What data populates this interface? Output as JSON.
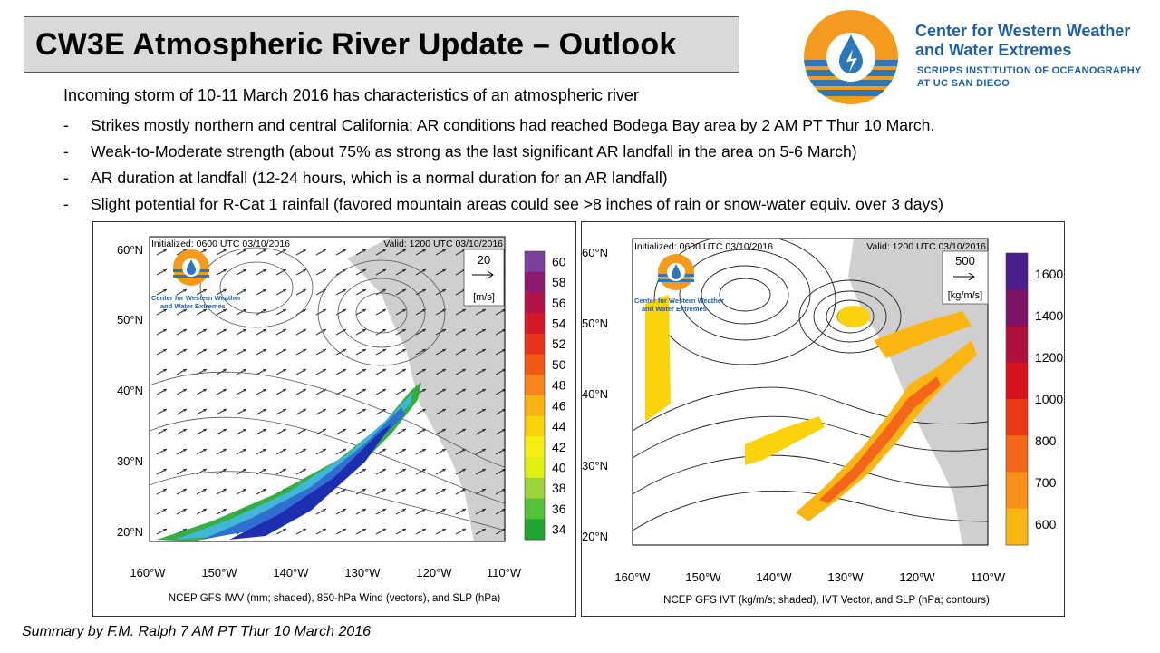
{
  "title": "CW3E Atmospheric River Update – Outlook",
  "org": {
    "name_line1": "Center for Western Weather",
    "name_line2": "and Water Extremes",
    "sub_line1": "SCRIPPS INSTITUTION OF OCEANOGRAPHY",
    "sub_line2": "AT UC SAN DIEGO",
    "colors": {
      "orange": "#f39a1f",
      "blue": "#1f5fa8",
      "stripe": "#2b77b8"
    }
  },
  "intro": "Incoming storm of 10-11 March 2016 has characteristics of an atmospheric river",
  "bullets": [
    {
      "dash": "-",
      "text": "Strikes mostly northern and central California; AR conditions had reached Bodega Bay area by 2 AM PT Thur 10 March."
    },
    {
      "dash": "-",
      "text": "Weak-to-Moderate strength (about 75% as strong as the last significant AR landfall in the area on 5-6 March)"
    },
    {
      "dash": "-",
      "text": "AR duration at landfall (12-24 hours, which is a normal duration for an AR landfall)"
    },
    {
      "dash": "-",
      "text": "Slight potential for R-Cat 1 rainfall (favored mountain areas could see >8 inches of rain or snow-water equiv. over 3 days)"
    }
  ],
  "left_map": {
    "initialized": "Initialized: 0600 UTC 03/10/2016",
    "valid": "Valid: 1200 UTC 03/10/2016",
    "ref_vector_value": "20",
    "ref_vector_unit": "[m/s]",
    "logo_text_1": "Center for Western Weather",
    "logo_text_2": "and Water Extremes",
    "lat_labels": [
      "60°N",
      "50°N",
      "40°N",
      "30°N",
      "20°N"
    ],
    "lon_labels": [
      "160°W",
      "150°W",
      "140°W",
      "130°W",
      "120°W",
      "110°W"
    ],
    "colorbar_labels": [
      "60",
      "58",
      "56",
      "54",
      "52",
      "50",
      "48",
      "46",
      "44",
      "42",
      "40",
      "38",
      "36",
      "34"
    ],
    "colorbar_colors": [
      "#7b3f9e",
      "#8e1a6e",
      "#b3134a",
      "#d4182a",
      "#e8321c",
      "#f05a14",
      "#f7851b",
      "#fbb314",
      "#fcd20b",
      "#f6ee13",
      "#dff012",
      "#9bd33b",
      "#53c238",
      "#1fa530"
    ],
    "caption": "NCEP GFS IWV (mm; shaded), 850-hPa Wind (vectors), and SLP (hPa)",
    "contour_labels": [
      "992",
      "1000",
      "1004",
      "1008",
      "1012",
      "1016",
      "1020",
      "1024",
      "984"
    ]
  },
  "right_map": {
    "initialized": "Initialized: 0600 UTC 03/10/2016",
    "valid": "Valid: 1200 UTC 03/10/2016",
    "ref_vector_value": "500",
    "ref_vector_unit": "[kg/m/s]",
    "logo_text_1": "Center for Western Weather",
    "logo_text_2": "and Water Extremes",
    "lat_labels": [
      "60°N",
      "50°N",
      "40°N",
      "30°N",
      "20°N"
    ],
    "lon_labels": [
      "160°W",
      "150°W",
      "140°W",
      "130°W",
      "120°W",
      "110°W"
    ],
    "colorbar_labels": [
      "1600",
      "1400",
      "1200",
      "1000",
      "800",
      "700",
      "600"
    ],
    "colorbar_colors": [
      "#4b1e8e",
      "#7e1264",
      "#b0103e",
      "#d8131f",
      "#ea3a12",
      "#f4661a",
      "#f99018",
      "#fcb614"
    ],
    "caption": "NCEP GFS IVT (kg/m/s; shaded), IVT Vector, and SLP (hPa; contours)",
    "contour_labels": [
      "980",
      "984",
      "988",
      "992",
      "996",
      "1000",
      "1004",
      "1008",
      "1012",
      "1016",
      "1020",
      "1024"
    ]
  },
  "summary": "Summary by F.M. Ralph 7 AM PT Thur 10 March 2016"
}
